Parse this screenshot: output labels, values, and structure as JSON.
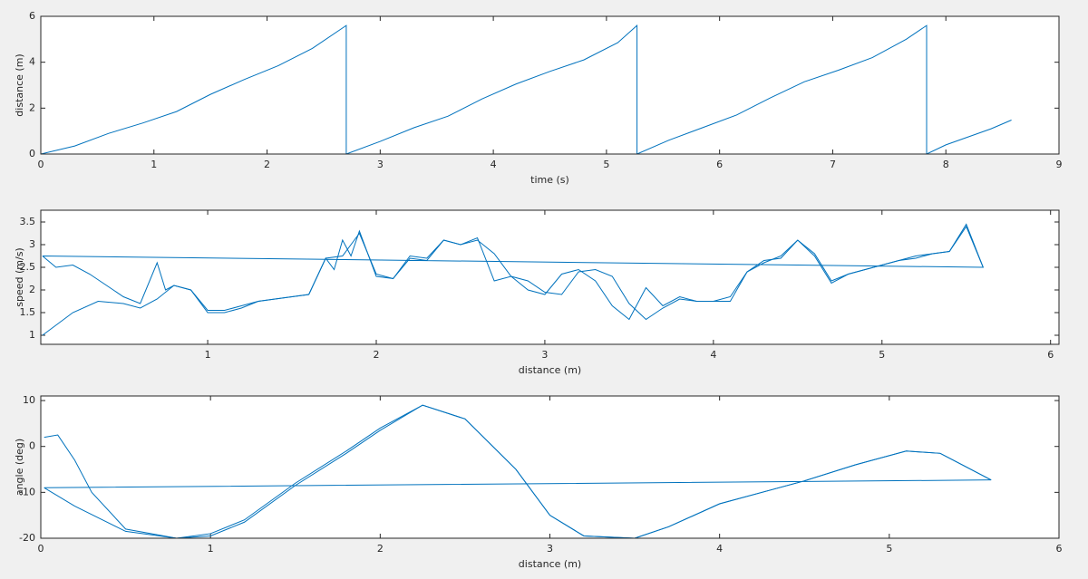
{
  "chart_data": [
    {
      "type": "line",
      "xlabel": "time (s)",
      "ylabel": "distance (m)",
      "x": [
        0,
        0.3,
        0.6,
        0.9,
        1.2,
        1.5,
        1.8,
        2.1,
        2.4,
        2.7,
        2.7,
        3.0,
        3.3,
        3.6,
        3.9,
        4.2,
        4.5,
        4.8,
        5.1,
        5.27,
        5.27,
        5.55,
        5.85,
        6.15,
        6.45,
        6.75,
        7.05,
        7.35,
        7.65,
        7.83,
        7.83,
        8.0,
        8.2,
        8.4,
        8.58
      ],
      "values": [
        0,
        0.35,
        0.9,
        1.35,
        1.85,
        2.6,
        3.25,
        3.85,
        4.6,
        5.6,
        0,
        0.55,
        1.15,
        1.65,
        2.4,
        3.05,
        3.6,
        4.1,
        4.85,
        5.6,
        0,
        0.6,
        1.15,
        1.7,
        2.45,
        3.15,
        3.65,
        4.2,
        5.0,
        5.6,
        0,
        0.4,
        0.75,
        1.1,
        1.48
      ],
      "color": "#0072bd",
      "xlim": [
        0,
        9
      ],
      "xticks": [
        0,
        1,
        2,
        3,
        4,
        5,
        6,
        7,
        8,
        9
      ],
      "ylim": [
        0,
        6
      ],
      "yticks": [
        0,
        2,
        4,
        6
      ]
    },
    {
      "type": "line",
      "xlabel": "distance (m)",
      "ylabel": "speed (m/s)",
      "series": [
        {
          "x": [
            0.02,
            0.2,
            0.35,
            0.5,
            0.6,
            0.7,
            0.8,
            0.9,
            1.0,
            1.1,
            1.2,
            1.3,
            1.4,
            1.5,
            1.6,
            1.7,
            1.8,
            1.9,
            2.0,
            2.1,
            2.2,
            2.3,
            2.4,
            2.5,
            2.6,
            2.7,
            2.8,
            2.9,
            3.0,
            3.1,
            3.2,
            3.3,
            3.4,
            3.5,
            3.6,
            3.7,
            3.8,
            3.9,
            4.0,
            4.1,
            4.2,
            4.3,
            4.4,
            4.5,
            4.6,
            4.7,
            4.8,
            4.9,
            5.0,
            5.1,
            5.2,
            5.3,
            5.4,
            5.5,
            5.6
          ],
          "values": [
            1.0,
            1.5,
            1.75,
            1.7,
            1.6,
            1.8,
            2.1,
            2.0,
            1.55,
            1.55,
            1.65,
            1.75,
            1.8,
            1.85,
            1.9,
            2.7,
            2.75,
            3.25,
            2.35,
            2.25,
            2.75,
            2.7,
            3.1,
            3.0,
            3.1,
            2.8,
            2.3,
            2.2,
            1.95,
            1.9,
            2.4,
            2.45,
            2.3,
            1.7,
            1.35,
            1.6,
            1.8,
            1.75,
            1.75,
            1.75,
            2.4,
            2.65,
            2.7,
            3.1,
            2.8,
            2.2,
            2.35,
            2.45,
            2.55,
            2.65,
            2.75,
            2.8,
            2.85,
            3.4,
            2.5
          ],
          "color": "#0072bd"
        },
        {
          "x": [
            0.02,
            0.1,
            0.2,
            0.3,
            0.4,
            0.5,
            0.6,
            0.7,
            0.75,
            0.8,
            0.9,
            1.0,
            1.1,
            1.2,
            1.3,
            1.4,
            1.5,
            1.6,
            1.7,
            1.75,
            1.8,
            1.85,
            1.9,
            2.0,
            2.1,
            2.2,
            2.3,
            2.4,
            2.5,
            2.6,
            2.7,
            2.8,
            2.9,
            3.0,
            3.1,
            3.2,
            3.3,
            3.4,
            3.5,
            3.6,
            3.7,
            3.8,
            3.9,
            4.0,
            4.1,
            4.2,
            4.3,
            4.4,
            4.5,
            4.6,
            4.7,
            4.8,
            4.9,
            5.0,
            5.1,
            5.2,
            5.3,
            5.4,
            5.5,
            5.6,
            0.02
          ],
          "values": [
            2.75,
            2.5,
            2.55,
            2.35,
            2.1,
            1.85,
            1.7,
            2.6,
            2.0,
            2.1,
            2.0,
            1.5,
            1.5,
            1.6,
            1.75,
            1.8,
            1.85,
            1.9,
            2.7,
            2.45,
            3.1,
            2.75,
            3.3,
            2.3,
            2.25,
            2.7,
            2.65,
            3.1,
            3.0,
            3.15,
            2.2,
            2.3,
            2.0,
            1.9,
            2.35,
            2.45,
            2.2,
            1.65,
            1.35,
            2.05,
            1.65,
            1.85,
            1.75,
            1.75,
            1.85,
            2.4,
            2.6,
            2.75,
            3.1,
            2.75,
            2.15,
            2.35,
            2.45,
            2.55,
            2.65,
            2.7,
            2.8,
            2.85,
            3.45,
            2.5,
            2.75
          ],
          "color": "#0072bd"
        }
      ],
      "xlim": [
        0.01,
        6.05
      ],
      "xticks": [
        1,
        2,
        3,
        4,
        5,
        6
      ],
      "ylim": [
        0.8,
        3.76
      ],
      "yticks": [
        1,
        1.5,
        2,
        2.5,
        3,
        3.5
      ]
    },
    {
      "type": "line",
      "xlabel": "distance (m)",
      "ylabel": "angle (deg)",
      "series": [
        {
          "x": [
            0.02,
            0.1,
            0.2,
            0.3,
            0.5,
            0.8,
            1.0,
            1.2,
            1.5,
            1.8,
            2.0,
            2.25,
            2.5,
            2.8,
            3.0,
            3.2,
            3.5,
            3.7,
            4.0,
            4.3,
            4.5,
            4.8,
            5.1,
            5.3,
            5.6,
            0.02
          ],
          "values": [
            2,
            2.5,
            -3,
            -10,
            -18,
            -20,
            -19,
            -16,
            -8,
            -1,
            4,
            9,
            6,
            -5,
            -15,
            -19.5,
            -20,
            -17.5,
            -12.5,
            -9.5,
            -7.5,
            -4,
            -1,
            -1.5,
            -7.3,
            -9
          ],
          "color": "#0072bd"
        },
        {
          "x": [
            0.02,
            0.2,
            0.5,
            0.8,
            1.0,
            1.2,
            1.5,
            1.8,
            2.0,
            2.25,
            2.5,
            2.8,
            3.0,
            3.2,
            3.5,
            3.7,
            4.0,
            4.3,
            4.5,
            4.8,
            5.1,
            5.3,
            5.6
          ],
          "values": [
            -9,
            -13,
            -18.5,
            -20,
            -19.5,
            -16.5,
            -8.5,
            -1.5,
            3.5,
            9,
            6,
            -5,
            -15,
            -19.5,
            -20,
            -17.5,
            -12.5,
            -9.5,
            -7.5,
            -4,
            -1,
            -1.5,
            -7.3
          ],
          "color": "#0072bd"
        }
      ],
      "xlim": [
        0,
        6
      ],
      "xticks": [
        0,
        1,
        2,
        3,
        4,
        5,
        6
      ],
      "ylim": [
        -20,
        11
      ],
      "yticks": [
        -20,
        -10,
        0,
        10
      ]
    }
  ]
}
